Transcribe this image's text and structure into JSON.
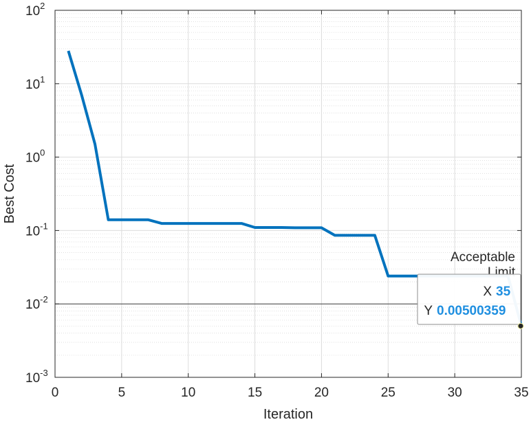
{
  "chart_data": {
    "type": "line",
    "xlabel": "Iteration",
    "ylabel": "Best Cost",
    "xlim": [
      0,
      35
    ],
    "ylim": [
      0.001,
      100
    ],
    "yscale": "log",
    "grid": true,
    "x_ticks": [
      "0",
      "5",
      "10",
      "15",
      "20",
      "25",
      "30",
      "35"
    ],
    "y_ticks": [
      {
        "base": "10",
        "exp": "-3"
      },
      {
        "base": "10",
        "exp": "-2"
      },
      {
        "base": "10",
        "exp": "-1"
      },
      {
        "base": "10",
        "exp": "0"
      },
      {
        "base": "10",
        "exp": "1"
      },
      {
        "base": "10",
        "exp": "2"
      }
    ],
    "series": [
      {
        "color": "#0072bd",
        "x": [
          1,
          2,
          3,
          4,
          5,
          6,
          7,
          8,
          9,
          10,
          11,
          12,
          13,
          14,
          15,
          16,
          17,
          18,
          19,
          20,
          21,
          22,
          23,
          24,
          25,
          26,
          27,
          28,
          29,
          30,
          31,
          32,
          33,
          34,
          35
        ],
        "y": [
          28,
          7.0,
          1.5,
          0.14,
          0.14,
          0.14,
          0.14,
          0.125,
          0.125,
          0.125,
          0.125,
          0.125,
          0.125,
          0.125,
          0.11,
          0.11,
          0.11,
          0.109,
          0.109,
          0.109,
          0.086,
          0.086,
          0.086,
          0.086,
          0.024,
          0.024,
          0.024,
          0.024,
          0.024,
          0.024,
          0.024,
          0.024,
          0.024,
          0.024,
          0.00500359
        ]
      }
    ],
    "reference_line": {
      "y": 0.01,
      "label_line1": "Acceptable",
      "label_line2": "Limit"
    },
    "datatip": {
      "x_label": "X",
      "x_value": "35",
      "y_label": "Y",
      "y_value": "0.00500359",
      "point": [
        35,
        0.00500359
      ]
    }
  }
}
